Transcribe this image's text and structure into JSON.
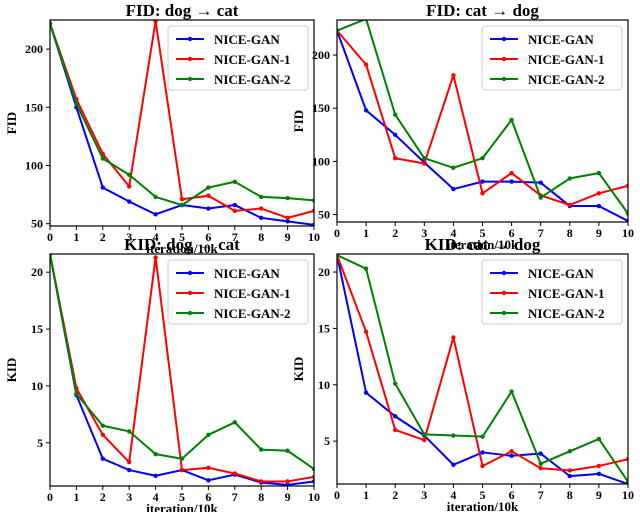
{
  "chart_data": [
    {
      "type": "line",
      "title": "FID: dog → cat",
      "xlabel": "iteration/10k",
      "ylabel": "FID",
      "x": [
        0,
        1,
        2,
        3,
        4,
        5,
        6,
        7,
        8,
        9,
        10
      ],
      "xlim": [
        0,
        10
      ],
      "ylim": [
        48,
        225
      ],
      "yticks": [
        50,
        100,
        150,
        200
      ],
      "legend_position": "top-right",
      "series": [
        {
          "name": "NICE-GAN",
          "color": "#0000ff",
          "values": [
            222,
            150,
            81,
            69,
            58,
            66,
            63,
            66,
            55,
            52,
            49
          ]
        },
        {
          "name": "NICE-GAN-1",
          "color": "#ff0000",
          "values": [
            222,
            157,
            110,
            82,
            224,
            71,
            74,
            61,
            63,
            55,
            61
          ]
        },
        {
          "name": "NICE-GAN-2",
          "color": "#008000",
          "values": [
            222,
            153,
            106,
            92,
            73,
            66,
            81,
            86,
            73,
            72,
            70
          ]
        }
      ]
    },
    {
      "type": "line",
      "title": "FID: cat → dog",
      "xlabel": "iteration/10k",
      "ylabel": "FID",
      "x": [
        0,
        1,
        2,
        3,
        4,
        5,
        6,
        7,
        8,
        9,
        10
      ],
      "xlim": [
        0,
        10
      ],
      "ylim": [
        43,
        233
      ],
      "yticks": [
        50,
        100,
        150,
        200
      ],
      "legend_position": "top-right",
      "series": [
        {
          "name": "NICE-GAN",
          "color": "#0000ff",
          "values": [
            223,
            148,
            125,
            99,
            74,
            81,
            81,
            80,
            58,
            58,
            44
          ]
        },
        {
          "name": "NICE-GAN-1",
          "color": "#ff0000",
          "values": [
            223,
            191,
            103,
            98,
            181,
            70,
            89,
            68,
            59,
            70,
            77
          ]
        },
        {
          "name": "NICE-GAN-2",
          "color": "#008000",
          "values": [
            223,
            234,
            144,
            103,
            94,
            103,
            139,
            66,
            84,
            89,
            51
          ]
        }
      ]
    },
    {
      "type": "line",
      "title": "KID: dog → cat",
      "xlabel": "iteration/10k",
      "ylabel": "KID",
      "x": [
        0,
        1,
        2,
        3,
        4,
        5,
        6,
        7,
        8,
        9,
        10
      ],
      "xlim": [
        0,
        10
      ],
      "ylim": [
        1.2,
        21.6
      ],
      "yticks": [
        5,
        10,
        15,
        20
      ],
      "legend_position": "top-right",
      "series": [
        {
          "name": "NICE-GAN",
          "color": "#0000ff",
          "values": [
            21.6,
            9.2,
            3.6,
            2.6,
            2.1,
            2.6,
            1.7,
            2.2,
            1.5,
            1.3,
            1.6
          ]
        },
        {
          "name": "NICE-GAN-1",
          "color": "#ff0000",
          "values": [
            21.6,
            9.8,
            5.7,
            3.3,
            21.3,
            2.6,
            2.8,
            2.3,
            1.6,
            1.6,
            2.0
          ]
        },
        {
          "name": "NICE-GAN-2",
          "color": "#008000",
          "values": [
            21.6,
            9.3,
            6.5,
            6.0,
            4.0,
            3.6,
            5.7,
            6.8,
            4.4,
            4.3,
            2.7
          ]
        }
      ]
    },
    {
      "type": "line",
      "title": "KID: cat → dog",
      "xlabel": "iteration/10k",
      "ylabel": "KID",
      "x": [
        0,
        1,
        2,
        3,
        4,
        5,
        6,
        7,
        8,
        9,
        10
      ],
      "xlim": [
        0,
        10
      ],
      "ylim": [
        1.2,
        21.6
      ],
      "yticks": [
        5,
        10,
        15,
        20
      ],
      "legend_position": "top-right",
      "series": [
        {
          "name": "NICE-GAN",
          "color": "#0000ff",
          "values": [
            21.5,
            9.3,
            7.2,
            5.5,
            2.9,
            4.0,
            3.7,
            3.9,
            1.9,
            2.1,
            1.2
          ]
        },
        {
          "name": "NICE-GAN-1",
          "color": "#ff0000",
          "values": [
            21.5,
            14.7,
            6.0,
            5.1,
            14.2,
            2.8,
            4.1,
            2.6,
            2.4,
            2.8,
            3.4
          ]
        },
        {
          "name": "NICE-GAN-2",
          "color": "#008000",
          "values": [
            21.5,
            20.3,
            10.1,
            5.6,
            5.5,
            5.4,
            9.4,
            3.0,
            4.1,
            5.2,
            1.4
          ]
        }
      ]
    }
  ]
}
